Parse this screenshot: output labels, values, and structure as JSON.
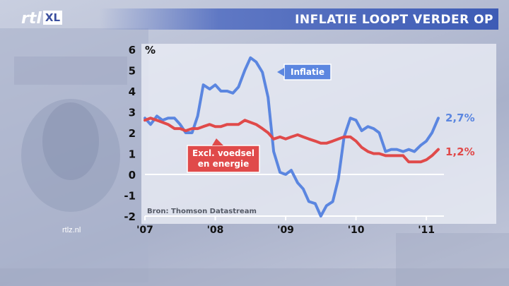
{
  "header": {
    "title": "INFLATIE LOOPT VERDER OP"
  },
  "logo": {
    "text": "rtl",
    "badge": "XL"
  },
  "footer": {
    "site": "rtlz.nl"
  },
  "colors": {
    "inflatie": "#5b86e0",
    "excl": "#e04a4a",
    "header": "#3d5bb5"
  },
  "chart_data": {
    "type": "line",
    "unit": "%",
    "ylim": [
      -2,
      6
    ],
    "yticks": [
      "6",
      "5",
      "4",
      "3",
      "2",
      "1",
      "0",
      "-1",
      "-2"
    ],
    "xlim": [
      2007.0,
      2011.25
    ],
    "xticks": [
      {
        "x": 2007.0,
        "label": "'07"
      },
      {
        "x": 2008.0,
        "label": "'08"
      },
      {
        "x": 2009.0,
        "label": "'09"
      },
      {
        "x": 2010.0,
        "label": "'10"
      },
      {
        "x": 2011.0,
        "label": "'11"
      }
    ],
    "source": "Bron: Thomson Datastream",
    "series": [
      {
        "name": "Inflatie",
        "end_label": "2,7%",
        "points": [
          [
            2007.0,
            2.7
          ],
          [
            2007.08,
            2.4
          ],
          [
            2007.17,
            2.8
          ],
          [
            2007.25,
            2.6
          ],
          [
            2007.33,
            2.7
          ],
          [
            2007.42,
            2.7
          ],
          [
            2007.5,
            2.4
          ],
          [
            2007.58,
            2.0
          ],
          [
            2007.67,
            2.0
          ],
          [
            2007.75,
            2.8
          ],
          [
            2007.83,
            4.3
          ],
          [
            2007.92,
            4.1
          ],
          [
            2008.0,
            4.3
          ],
          [
            2008.08,
            4.0
          ],
          [
            2008.17,
            4.0
          ],
          [
            2008.25,
            3.9
          ],
          [
            2008.33,
            4.2
          ],
          [
            2008.42,
            5.0
          ],
          [
            2008.5,
            5.6
          ],
          [
            2008.58,
            5.4
          ],
          [
            2008.67,
            4.9
          ],
          [
            2008.75,
            3.7
          ],
          [
            2008.83,
            1.1
          ],
          [
            2008.92,
            0.1
          ],
          [
            2009.0,
            0.0
          ],
          [
            2009.08,
            0.2
          ],
          [
            2009.17,
            -0.4
          ],
          [
            2009.25,
            -0.7
          ],
          [
            2009.33,
            -1.3
          ],
          [
            2009.42,
            -1.4
          ],
          [
            2009.5,
            -2.0
          ],
          [
            2009.58,
            -1.5
          ],
          [
            2009.67,
            -1.3
          ],
          [
            2009.75,
            -0.2
          ],
          [
            2009.83,
            1.8
          ],
          [
            2009.92,
            2.7
          ],
          [
            2010.0,
            2.6
          ],
          [
            2010.08,
            2.1
          ],
          [
            2010.17,
            2.3
          ],
          [
            2010.25,
            2.2
          ],
          [
            2010.33,
            2.0
          ],
          [
            2010.42,
            1.1
          ],
          [
            2010.5,
            1.2
          ],
          [
            2010.58,
            1.2
          ],
          [
            2010.67,
            1.1
          ],
          [
            2010.75,
            1.2
          ],
          [
            2010.83,
            1.1
          ],
          [
            2010.92,
            1.4
          ],
          [
            2011.0,
            1.6
          ],
          [
            2011.08,
            2.0
          ],
          [
            2011.17,
            2.7
          ]
        ]
      },
      {
        "name": "Excl. voedsel en energie",
        "end_label": "1,2%",
        "points": [
          [
            2007.0,
            2.6
          ],
          [
            2007.08,
            2.7
          ],
          [
            2007.17,
            2.6
          ],
          [
            2007.25,
            2.5
          ],
          [
            2007.33,
            2.4
          ],
          [
            2007.42,
            2.2
          ],
          [
            2007.5,
            2.2
          ],
          [
            2007.58,
            2.1
          ],
          [
            2007.67,
            2.2
          ],
          [
            2007.75,
            2.2
          ],
          [
            2007.83,
            2.3
          ],
          [
            2007.92,
            2.4
          ],
          [
            2008.0,
            2.3
          ],
          [
            2008.08,
            2.3
          ],
          [
            2008.17,
            2.4
          ],
          [
            2008.25,
            2.4
          ],
          [
            2008.33,
            2.4
          ],
          [
            2008.42,
            2.6
          ],
          [
            2008.5,
            2.5
          ],
          [
            2008.58,
            2.4
          ],
          [
            2008.67,
            2.2
          ],
          [
            2008.75,
            2.0
          ],
          [
            2008.83,
            1.7
          ],
          [
            2008.92,
            1.8
          ],
          [
            2009.0,
            1.7
          ],
          [
            2009.08,
            1.8
          ],
          [
            2009.17,
            1.9
          ],
          [
            2009.25,
            1.8
          ],
          [
            2009.33,
            1.7
          ],
          [
            2009.42,
            1.6
          ],
          [
            2009.5,
            1.5
          ],
          [
            2009.58,
            1.5
          ],
          [
            2009.67,
            1.6
          ],
          [
            2009.75,
            1.7
          ],
          [
            2009.83,
            1.8
          ],
          [
            2009.92,
            1.8
          ],
          [
            2010.0,
            1.6
          ],
          [
            2010.08,
            1.3
          ],
          [
            2010.17,
            1.1
          ],
          [
            2010.25,
            1.0
          ],
          [
            2010.33,
            1.0
          ],
          [
            2010.42,
            0.9
          ],
          [
            2010.5,
            0.9
          ],
          [
            2010.58,
            0.9
          ],
          [
            2010.67,
            0.9
          ],
          [
            2010.75,
            0.6
          ],
          [
            2010.83,
            0.6
          ],
          [
            2010.92,
            0.6
          ],
          [
            2011.0,
            0.7
          ],
          [
            2011.08,
            0.9
          ],
          [
            2011.17,
            1.2
          ]
        ]
      }
    ],
    "annotations": [
      {
        "text": "Inflatie",
        "lines": [
          "Inflatie"
        ],
        "series": 0
      },
      {
        "text": "Excl. voedsel en energie",
        "lines": [
          "Excl. voedsel",
          "en energie"
        ],
        "series": 1
      }
    ]
  }
}
